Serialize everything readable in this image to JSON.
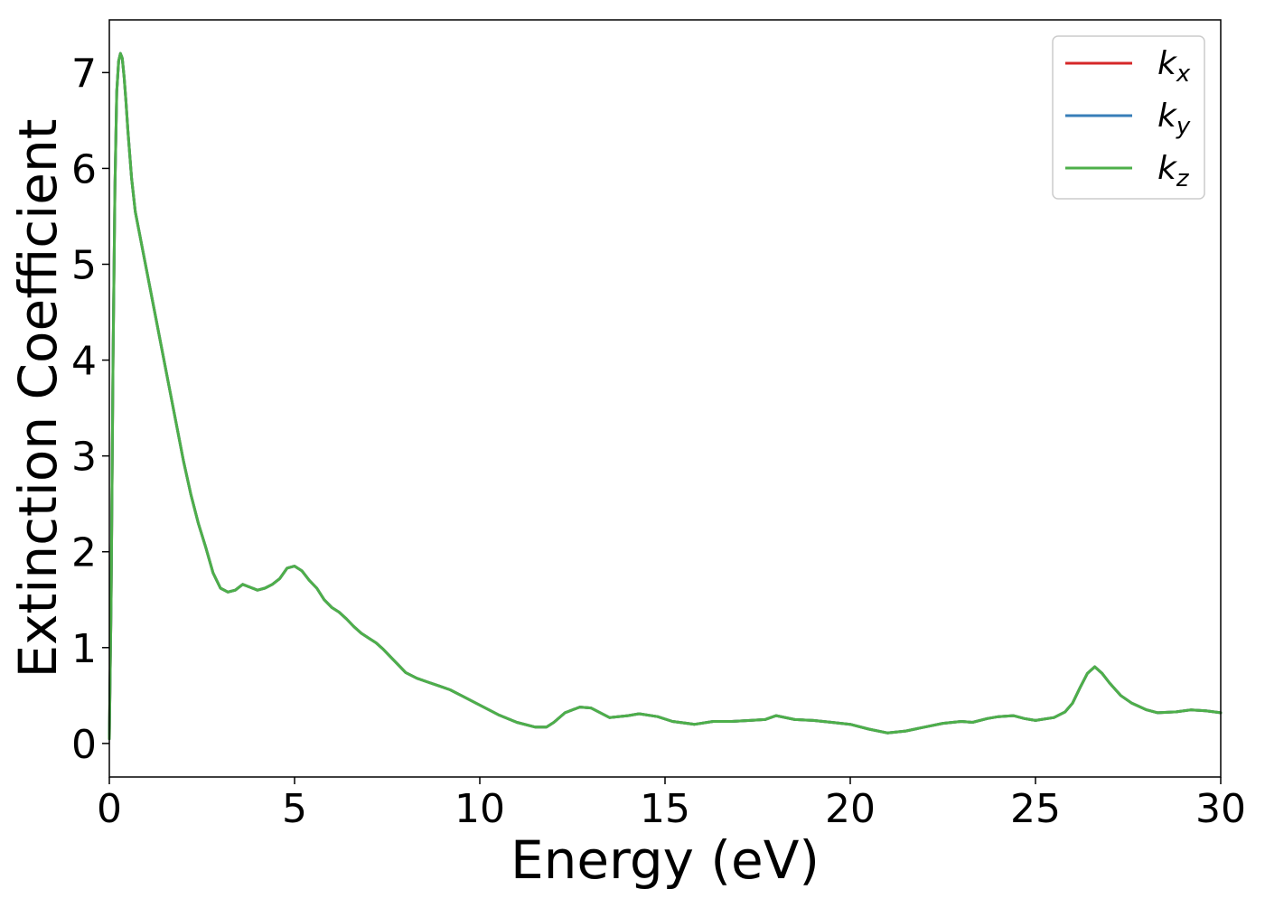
{
  "chart_data": {
    "type": "line",
    "title": "",
    "xlabel": "Energy (eV)",
    "ylabel": "Extinction Coefficient",
    "xlim": [
      0,
      30
    ],
    "ylim": [
      -0.35,
      7.55
    ],
    "xticks": [
      0,
      5,
      10,
      15,
      20,
      25,
      30
    ],
    "yticks": [
      0,
      1,
      2,
      3,
      4,
      5,
      6,
      7
    ],
    "grid": false,
    "legend_position": "top-right",
    "series": [
      {
        "name": "k",
        "subscript": "x",
        "color": "#d62728",
        "x": [],
        "y": []
      },
      {
        "name": "k",
        "subscript": "y",
        "color": "#377eb8",
        "x": [],
        "y": []
      },
      {
        "name": "k",
        "subscript": "z",
        "color": "#4daf4a",
        "x": [],
        "y": []
      }
    ],
    "shared_curve": {
      "x": [
        0,
        0.05,
        0.1,
        0.15,
        0.2,
        0.25,
        0.3,
        0.35,
        0.4,
        0.45,
        0.5,
        0.6,
        0.7,
        0.8,
        0.9,
        1.0,
        1.2,
        1.4,
        1.6,
        1.8,
        2.0,
        2.2,
        2.4,
        2.6,
        2.8,
        3.0,
        3.2,
        3.4,
        3.6,
        3.8,
        4.0,
        4.2,
        4.4,
        4.6,
        4.8,
        5.0,
        5.2,
        5.4,
        5.6,
        5.8,
        6.0,
        6.2,
        6.4,
        6.6,
        6.8,
        7.0,
        7.2,
        7.4,
        7.6,
        7.8,
        8.0,
        8.3,
        8.6,
        8.9,
        9.2,
        9.5,
        10.0,
        10.5,
        11.0,
        11.5,
        11.8,
        12.0,
        12.3,
        12.7,
        13.0,
        13.5,
        14.0,
        14.3,
        14.8,
        15.2,
        15.8,
        16.3,
        16.8,
        17.3,
        17.7,
        18.0,
        18.5,
        19.0,
        19.5,
        20.0,
        20.5,
        21.0,
        21.5,
        22.0,
        22.5,
        23.0,
        23.3,
        23.7,
        24.0,
        24.4,
        24.7,
        25.0,
        25.5,
        25.8,
        26.0,
        26.2,
        26.4,
        26.6,
        26.8,
        27.0,
        27.3,
        27.6,
        28.0,
        28.3,
        28.8,
        29.2,
        29.6,
        30.0
      ],
      "y": [
        0.05,
        1.5,
        4.0,
        5.8,
        6.8,
        7.12,
        7.2,
        7.15,
        6.95,
        6.7,
        6.4,
        5.9,
        5.55,
        5.35,
        5.15,
        4.95,
        4.55,
        4.15,
        3.75,
        3.35,
        2.95,
        2.6,
        2.3,
        2.05,
        1.78,
        1.62,
        1.58,
        1.6,
        1.66,
        1.63,
        1.6,
        1.62,
        1.66,
        1.72,
        1.83,
        1.85,
        1.8,
        1.7,
        1.62,
        1.5,
        1.42,
        1.37,
        1.3,
        1.22,
        1.15,
        1.1,
        1.05,
        0.98,
        0.9,
        0.82,
        0.74,
        0.68,
        0.64,
        0.6,
        0.56,
        0.5,
        0.4,
        0.3,
        0.22,
        0.17,
        0.17,
        0.22,
        0.32,
        0.38,
        0.37,
        0.27,
        0.29,
        0.31,
        0.28,
        0.23,
        0.2,
        0.23,
        0.23,
        0.24,
        0.25,
        0.29,
        0.25,
        0.24,
        0.22,
        0.2,
        0.15,
        0.11,
        0.13,
        0.17,
        0.21,
        0.23,
        0.22,
        0.26,
        0.28,
        0.29,
        0.26,
        0.24,
        0.27,
        0.33,
        0.42,
        0.58,
        0.73,
        0.8,
        0.73,
        0.63,
        0.5,
        0.42,
        0.35,
        0.32,
        0.33,
        0.35,
        0.34,
        0.32
      ]
    }
  }
}
